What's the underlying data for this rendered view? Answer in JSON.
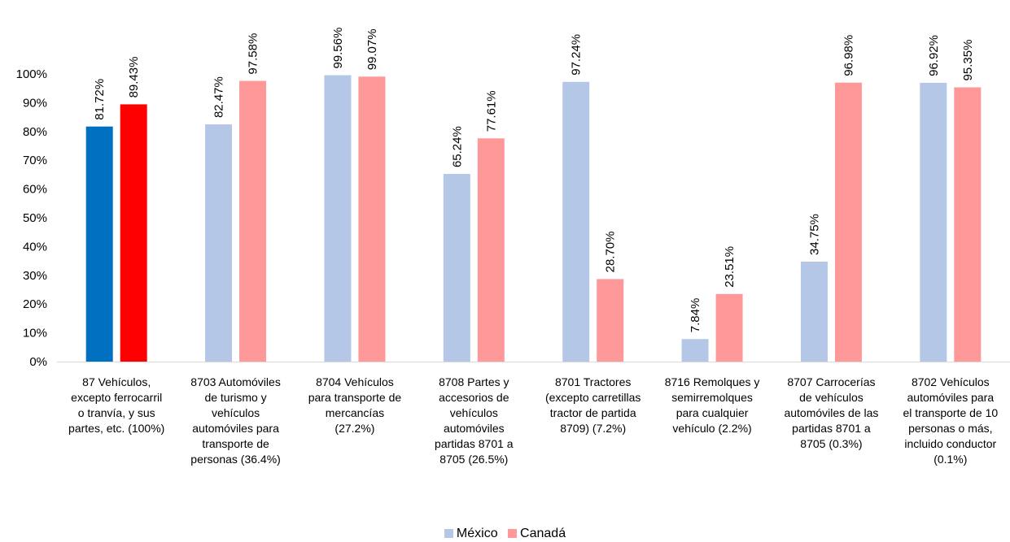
{
  "chart_data": {
    "type": "bar",
    "title": "",
    "xlabel": "",
    "ylabel": "",
    "ylim": [
      0,
      100
    ],
    "y_ticks": [
      "0%",
      "10%",
      "20%",
      "30%",
      "40%",
      "50%",
      "60%",
      "70%",
      "80%",
      "90%",
      "100%"
    ],
    "grid": false,
    "legend_position": "bottom",
    "categories": [
      [
        "87 Vehículos,",
        "excepto ferrocarril",
        "o tranvía, y sus",
        "partes, etc. (100%)"
      ],
      [
        "8703 Automóviles",
        "de turismo y",
        "vehículos",
        "automóviles para",
        "transporte de",
        "personas (36.4%)"
      ],
      [
        "8704 Vehículos",
        "para transporte de",
        "mercancías",
        "(27.2%)"
      ],
      [
        "8708 Partes y",
        "accesorios de",
        "vehículos",
        "automóviles",
        "partidas 8701 a",
        "8705 (26.5%)"
      ],
      [
        "8701 Tractores",
        "(excepto carretillas",
        "tractor de partida",
        "8709) (7.2%)"
      ],
      [
        "8716 Remolques y",
        "semirremolques",
        "para cualquier",
        "vehículo (2.2%)"
      ],
      [
        "8707 Carrocerías",
        "de vehículos",
        "automóviles de las",
        "partidas 8701 a",
        "8705 (0.3%)"
      ],
      [
        "8702 Vehículos",
        "automóviles para",
        "el transporte de 10",
        "personas o más,",
        "incluido conductor",
        "(0.1%)"
      ]
    ],
    "series": [
      {
        "name": "México",
        "color": "#B4C7E7",
        "highlight_color": "#0070C0",
        "values": [
          81.72,
          82.47,
          99.56,
          65.24,
          97.24,
          7.84,
          34.75,
          96.92
        ],
        "labels": [
          "81.72%",
          "82.47%",
          "99.56%",
          "65.24%",
          "97.24%",
          "7.84%",
          "34.75%",
          "96.92%"
        ]
      },
      {
        "name": "Canadá",
        "color": "#FF9999",
        "highlight_color": "#FF0000",
        "values": [
          89.43,
          97.58,
          99.07,
          77.61,
          28.7,
          23.51,
          96.98,
          95.35
        ],
        "labels": [
          "89.43%",
          "97.58%",
          "99.07%",
          "77.61%",
          "28.70%",
          "23.51%",
          "96.98%",
          "95.35%"
        ]
      }
    ],
    "highlighted_category_index": 0
  },
  "legend": {
    "items": [
      {
        "label": "México",
        "color": "#B4C7E7"
      },
      {
        "label": "Canadá",
        "color": "#FF9999"
      }
    ]
  }
}
